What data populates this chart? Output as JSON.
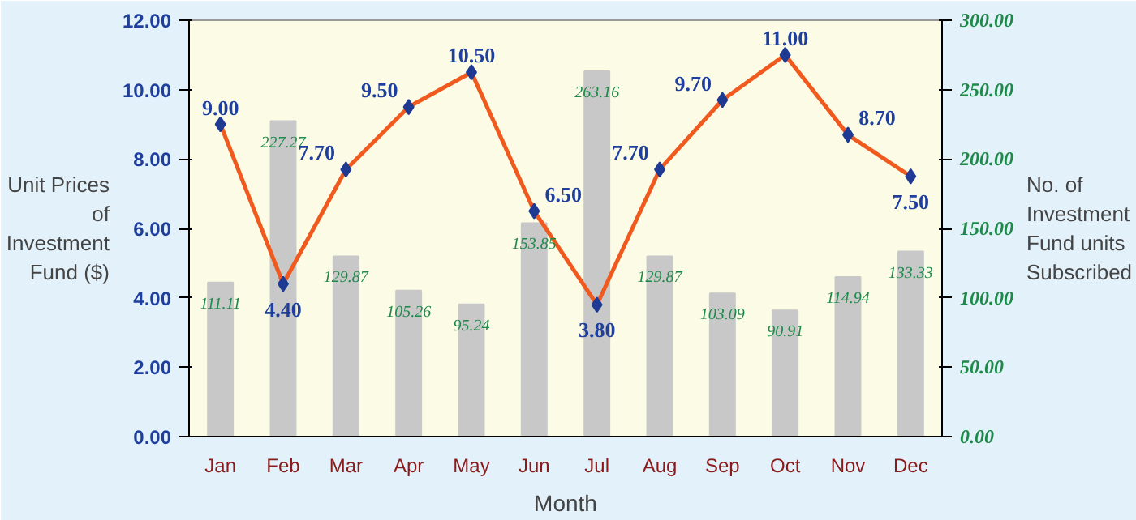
{
  "chart_data": {
    "type": "bar",
    "xlabel": "Month",
    "ylabel": "Unit Prices of Investment Fund ($)",
    "y2label": "No. of Investment Fund units Subscribed",
    "categories": [
      "Jan",
      "Feb",
      "Mar",
      "Apr",
      "May",
      "Jun",
      "Jul",
      "Aug",
      "Sep",
      "Oct",
      "Nov",
      "Dec"
    ],
    "series": [
      {
        "axis": "y2",
        "color": "#c8c8c8",
        "values": [
          111.11,
          227.27,
          129.87,
          105.26,
          95.24,
          153.85,
          263.16,
          129.87,
          103.09,
          90.91,
          114.94,
          133.33
        ]
      },
      {
        "type": "line",
        "axis": "y",
        "color": "#f05a1e",
        "marker": "diamond",
        "values": [
          9.0,
          4.4,
          7.7,
          9.5,
          10.5,
          6.5,
          3.8,
          7.7,
          9.7,
          11.0,
          8.7,
          7.5
        ],
        "value_labels": [
          "9.00",
          "4.40",
          "7.70",
          "9.50",
          "10.50",
          "6.50",
          "3.80",
          "7.70",
          "9.70",
          "11.00",
          "8.70",
          "7.50"
        ]
      }
    ],
    "ylim": [
      0,
      12
    ],
    "yticks": [
      {
        "value": 0,
        "label": "0.00"
      },
      {
        "value": 2,
        "label": "2.00"
      },
      {
        "value": 4,
        "label": "4.00"
      },
      {
        "value": 6,
        "label": "6.00"
      },
      {
        "value": 8,
        "label": "8.00"
      },
      {
        "value": 10,
        "label": "10.00"
      },
      {
        "value": 12,
        "label": "12.00"
      }
    ],
    "y2lim": [
      0,
      300
    ],
    "y2ticks": [
      {
        "value": 0,
        "label": "0.00"
      },
      {
        "value": 50,
        "label": "50.00"
      },
      {
        "value": 100,
        "label": "100.00"
      },
      {
        "value": 150,
        "label": "150.00"
      },
      {
        "value": 200,
        "label": "200.00"
      },
      {
        "value": 250,
        "label": "250.00"
      },
      {
        "value": 300,
        "label": "300.00"
      }
    ],
    "data_labels": true,
    "grid": false
  }
}
